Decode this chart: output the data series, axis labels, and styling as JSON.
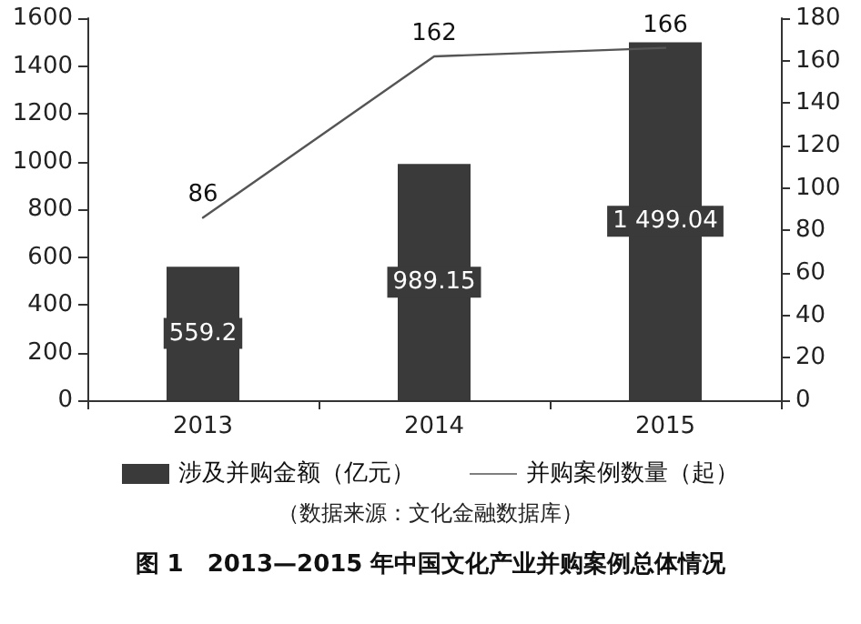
{
  "chart_data": {
    "type": "bar",
    "title": "图 1　2013—2015 年中国文化产业并购案例总体情况",
    "annotations": [
      "（数据来源：文化金融数据库）"
    ],
    "categories": [
      "2013",
      "2014",
      "2015"
    ],
    "series": [
      {
        "name": "涉及并购金额（亿元）",
        "color": "#3a3a3a",
        "values": [
          559.2,
          989.15,
          1499.04
        ],
        "value_labels": [
          "559.2",
          "989.15",
          "1 499.04"
        ]
      },
      {
        "name": "并购案例数量（起）",
        "type": "line",
        "axis": "y2",
        "color": "#555555",
        "values": [
          86,
          162,
          166
        ],
        "value_labels": [
          "86",
          "162",
          "166"
        ]
      }
    ],
    "ylim": [
      0,
      1600
    ],
    "yticks": [
      0,
      200,
      400,
      600,
      800,
      1000,
      1200,
      1400,
      1600
    ],
    "y2lim": [
      0,
      180
    ],
    "y2ticks": [
      0,
      20,
      40,
      60,
      80,
      100,
      120,
      140,
      160,
      180
    ],
    "legend": "bottom",
    "marker": "none",
    "line_style": "solid",
    "grid": false
  }
}
